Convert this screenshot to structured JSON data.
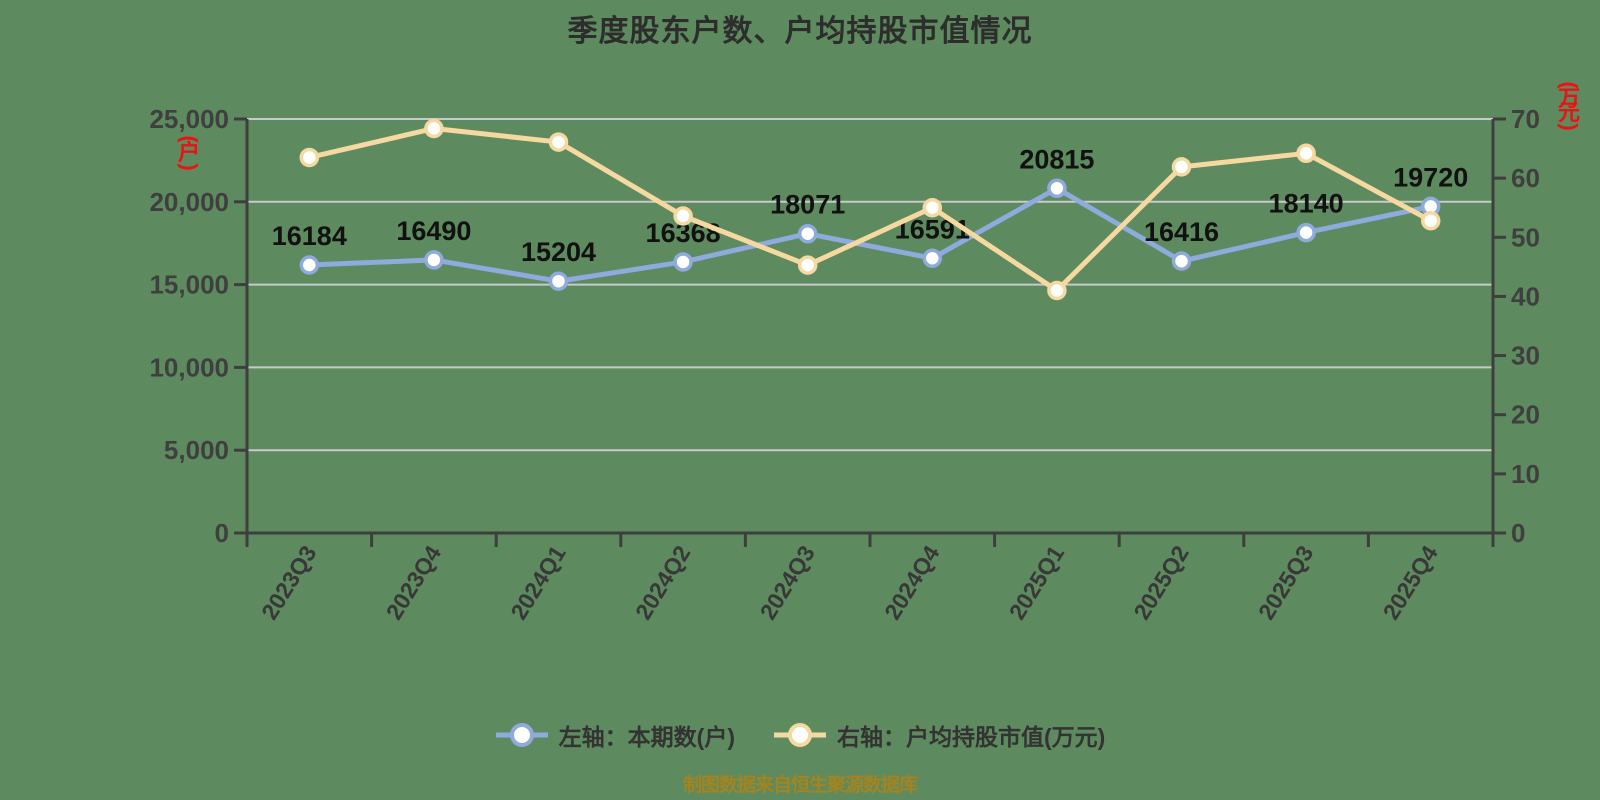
{
  "title": "季度股东户数、户均持股市值情况",
  "unit_labels": {
    "left": "(户)",
    "right": "(万元)"
  },
  "source_note": "制图数据来自恒生聚源数据库",
  "legend": {
    "items": [
      {
        "label": "左轴：本期数(户)",
        "color": "#8FAADC"
      },
      {
        "label": "右轴：户均持股市值(万元)",
        "color": "#F6D9A0"
      }
    ]
  },
  "chart_data": {
    "type": "line",
    "title": "季度股东户数、户均持股市值情况",
    "categories": [
      "2023Q3",
      "2023Q4",
      "2024Q1",
      "2024Q2",
      "2024Q3",
      "2024Q4",
      "2025Q1",
      "2025Q2",
      "2025Q3",
      "2025Q4"
    ],
    "series": [
      {
        "name": "左轴：本期数(户)",
        "axis": "left",
        "color": "#8FAADC",
        "values": [
          16184,
          16490,
          15204,
          16368,
          18071,
          16591,
          20815,
          16416,
          18140,
          19720
        ],
        "point_labels": [
          "16184",
          "16490",
          "15204",
          "16368",
          "18071",
          "16591",
          "20815",
          "16416",
          "18140",
          "19720"
        ],
        "show_point_labels": true
      },
      {
        "name": "右轴：户均持股市值(万元)",
        "axis": "right",
        "color": "#F6D9A0",
        "values": [
          63.5,
          68.4,
          66.1,
          53.6,
          45.3,
          55.0,
          41.0,
          61.9,
          64.2,
          52.8
        ],
        "show_point_labels": false
      }
    ],
    "left_axis": {
      "unit": "(户)",
      "min": 0,
      "max": 25000,
      "tick_step": 5000,
      "tick_labels": [
        "0",
        "5,000",
        "10,000",
        "15,000",
        "20,000",
        "25,000"
      ]
    },
    "right_axis": {
      "unit": "(万元)",
      "min": 0,
      "max": 70,
      "tick_step": 10,
      "tick_labels": [
        "0",
        "10",
        "20",
        "30",
        "40",
        "50",
        "60",
        "70"
      ]
    },
    "grid": true,
    "legend_position": "bottom",
    "x_label_rotation_deg": 58
  },
  "colors": {
    "background": "#5E8A5F",
    "axis_line": "#3E3E3E",
    "grid_line": "#C9C9C9",
    "tick_label": "#3F3F3F",
    "x_label": "#383838",
    "data_label": "#111111",
    "title_text": "#2D2D2D",
    "legend_text": "#333333",
    "unit_label": "#EE1111",
    "source_text": "#A3841E"
  }
}
